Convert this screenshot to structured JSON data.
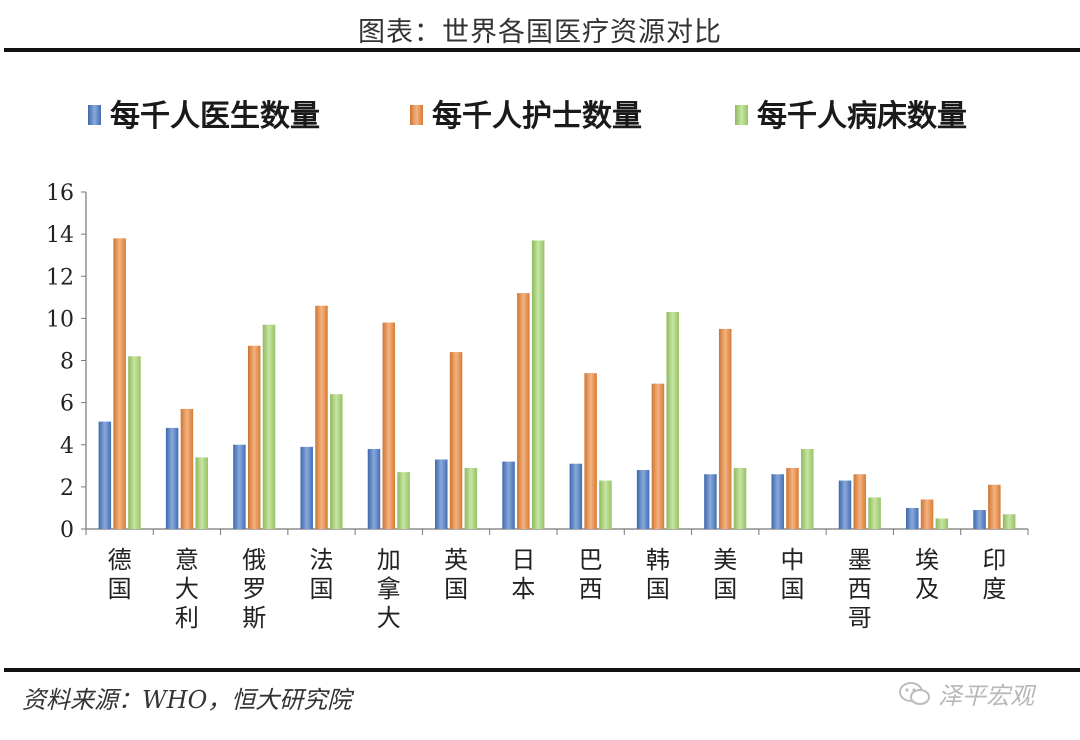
{
  "title": "图表：世界各国医疗资源对比",
  "source": "资料来源：WHO，恒大研究院",
  "watermark": "泽平宏观",
  "chart_data": {
    "type": "bar",
    "categories": [
      "德国",
      "意大利",
      "俄罗斯",
      "法国",
      "加拿大",
      "英国",
      "日本",
      "巴西",
      "韩国",
      "美国",
      "中国",
      "墨西哥",
      "埃及",
      "印度"
    ],
    "series": [
      {
        "name": "每千人医生数量",
        "color": "#4a7ac8",
        "values": [
          5.1,
          4.8,
          4.0,
          3.9,
          3.8,
          3.3,
          3.2,
          3.1,
          2.8,
          2.6,
          2.6,
          2.3,
          1.0,
          0.9
        ]
      },
      {
        "name": "每千人护士数量",
        "color": "#f08a3c",
        "values": [
          13.8,
          5.7,
          8.7,
          10.6,
          9.8,
          8.4,
          11.2,
          7.4,
          6.9,
          9.5,
          2.9,
          2.6,
          1.4,
          2.1
        ]
      },
      {
        "name": "每千人病床数量",
        "color": "#a8d870",
        "values": [
          8.2,
          3.4,
          9.7,
          6.4,
          2.7,
          2.9,
          13.7,
          2.3,
          10.3,
          2.9,
          3.8,
          1.5,
          0.5,
          0.7
        ]
      }
    ],
    "ylim": [
      0,
      16
    ],
    "yticks": [
      0,
      2,
      4,
      6,
      8,
      10,
      12,
      14,
      16
    ],
    "legend_position": "top",
    "grid": false
  }
}
